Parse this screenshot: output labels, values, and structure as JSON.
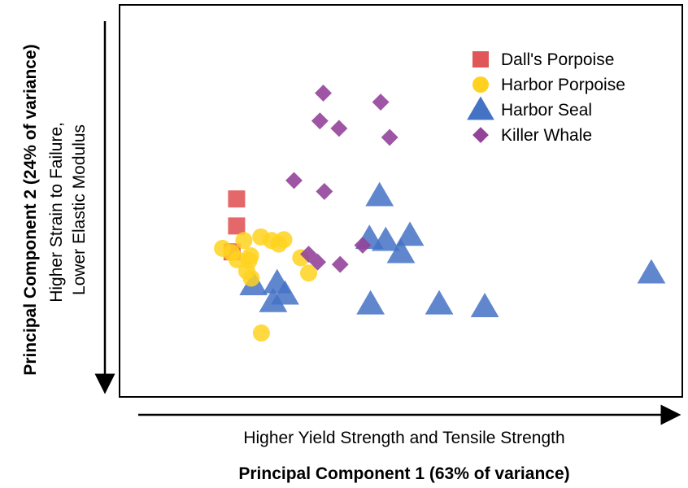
{
  "chart_data": {
    "type": "scatter",
    "title": "",
    "xlabel": "Principal Component 1 (63% of variance)",
    "ylabel": "Principal Component 2 (24% of variance)",
    "x_direction_label": "Higher Yield Strength and Tensile Strength",
    "y_direction_label_lines": [
      "Higher Strain to Failure,",
      "Lower Elastic Modulus"
    ],
    "xlim": [
      0,
      100
    ],
    "ylim": [
      0,
      100
    ],
    "grid": false,
    "ticks": false,
    "legend_position": "top-right",
    "series": [
      {
        "name": "Dall's Porpoise",
        "marker": "square",
        "color": "#e15759",
        "points": [
          [
            20.8,
            50.5
          ],
          [
            20.8,
            43.6
          ],
          [
            20.0,
            37.0
          ]
        ]
      },
      {
        "name": "Harbor Porpoise",
        "marker": "circle",
        "color": "#ffd21f",
        "points": [
          [
            18.3,
            37.9
          ],
          [
            19.9,
            36.8
          ],
          [
            20.9,
            35.0
          ],
          [
            22.1,
            39.9
          ],
          [
            23.3,
            36.0
          ],
          [
            25.1,
            40.8
          ],
          [
            27.0,
            39.9
          ],
          [
            28.3,
            39.0
          ],
          [
            29.2,
            40.1
          ],
          [
            22.6,
            32.1
          ],
          [
            23.0,
            34.8
          ],
          [
            32.2,
            35.5
          ],
          [
            33.6,
            31.6
          ],
          [
            23.4,
            30.3
          ],
          [
            25.2,
            16.3
          ]
        ]
      },
      {
        "name": "Harbor Seal",
        "marker": "triangle",
        "color": "#4472c4",
        "points": [
          [
            23.8,
            28.6
          ],
          [
            28.0,
            29.1
          ],
          [
            29.4,
            26.2
          ],
          [
            27.3,
            24.3
          ],
          [
            46.2,
            51.3
          ],
          [
            44.4,
            40.4
          ],
          [
            47.3,
            39.9
          ],
          [
            51.6,
            41.2
          ],
          [
            50.0,
            36.8
          ],
          [
            44.6,
            23.7
          ],
          [
            56.8,
            23.7
          ],
          [
            64.9,
            23.0
          ],
          [
            94.5,
            31.6
          ]
        ]
      },
      {
        "name": "Killer Whale",
        "marker": "diamond",
        "color": "#93449a",
        "points": [
          [
            36.2,
            77.5
          ],
          [
            35.6,
            70.4
          ],
          [
            39.0,
            68.5
          ],
          [
            46.4,
            75.2
          ],
          [
            48.0,
            66.2
          ],
          [
            31.0,
            55.2
          ],
          [
            36.4,
            52.4
          ],
          [
            43.2,
            38.7
          ],
          [
            33.6,
            36.4
          ],
          [
            35.2,
            34.4
          ],
          [
            39.2,
            33.8
          ]
        ]
      }
    ]
  }
}
